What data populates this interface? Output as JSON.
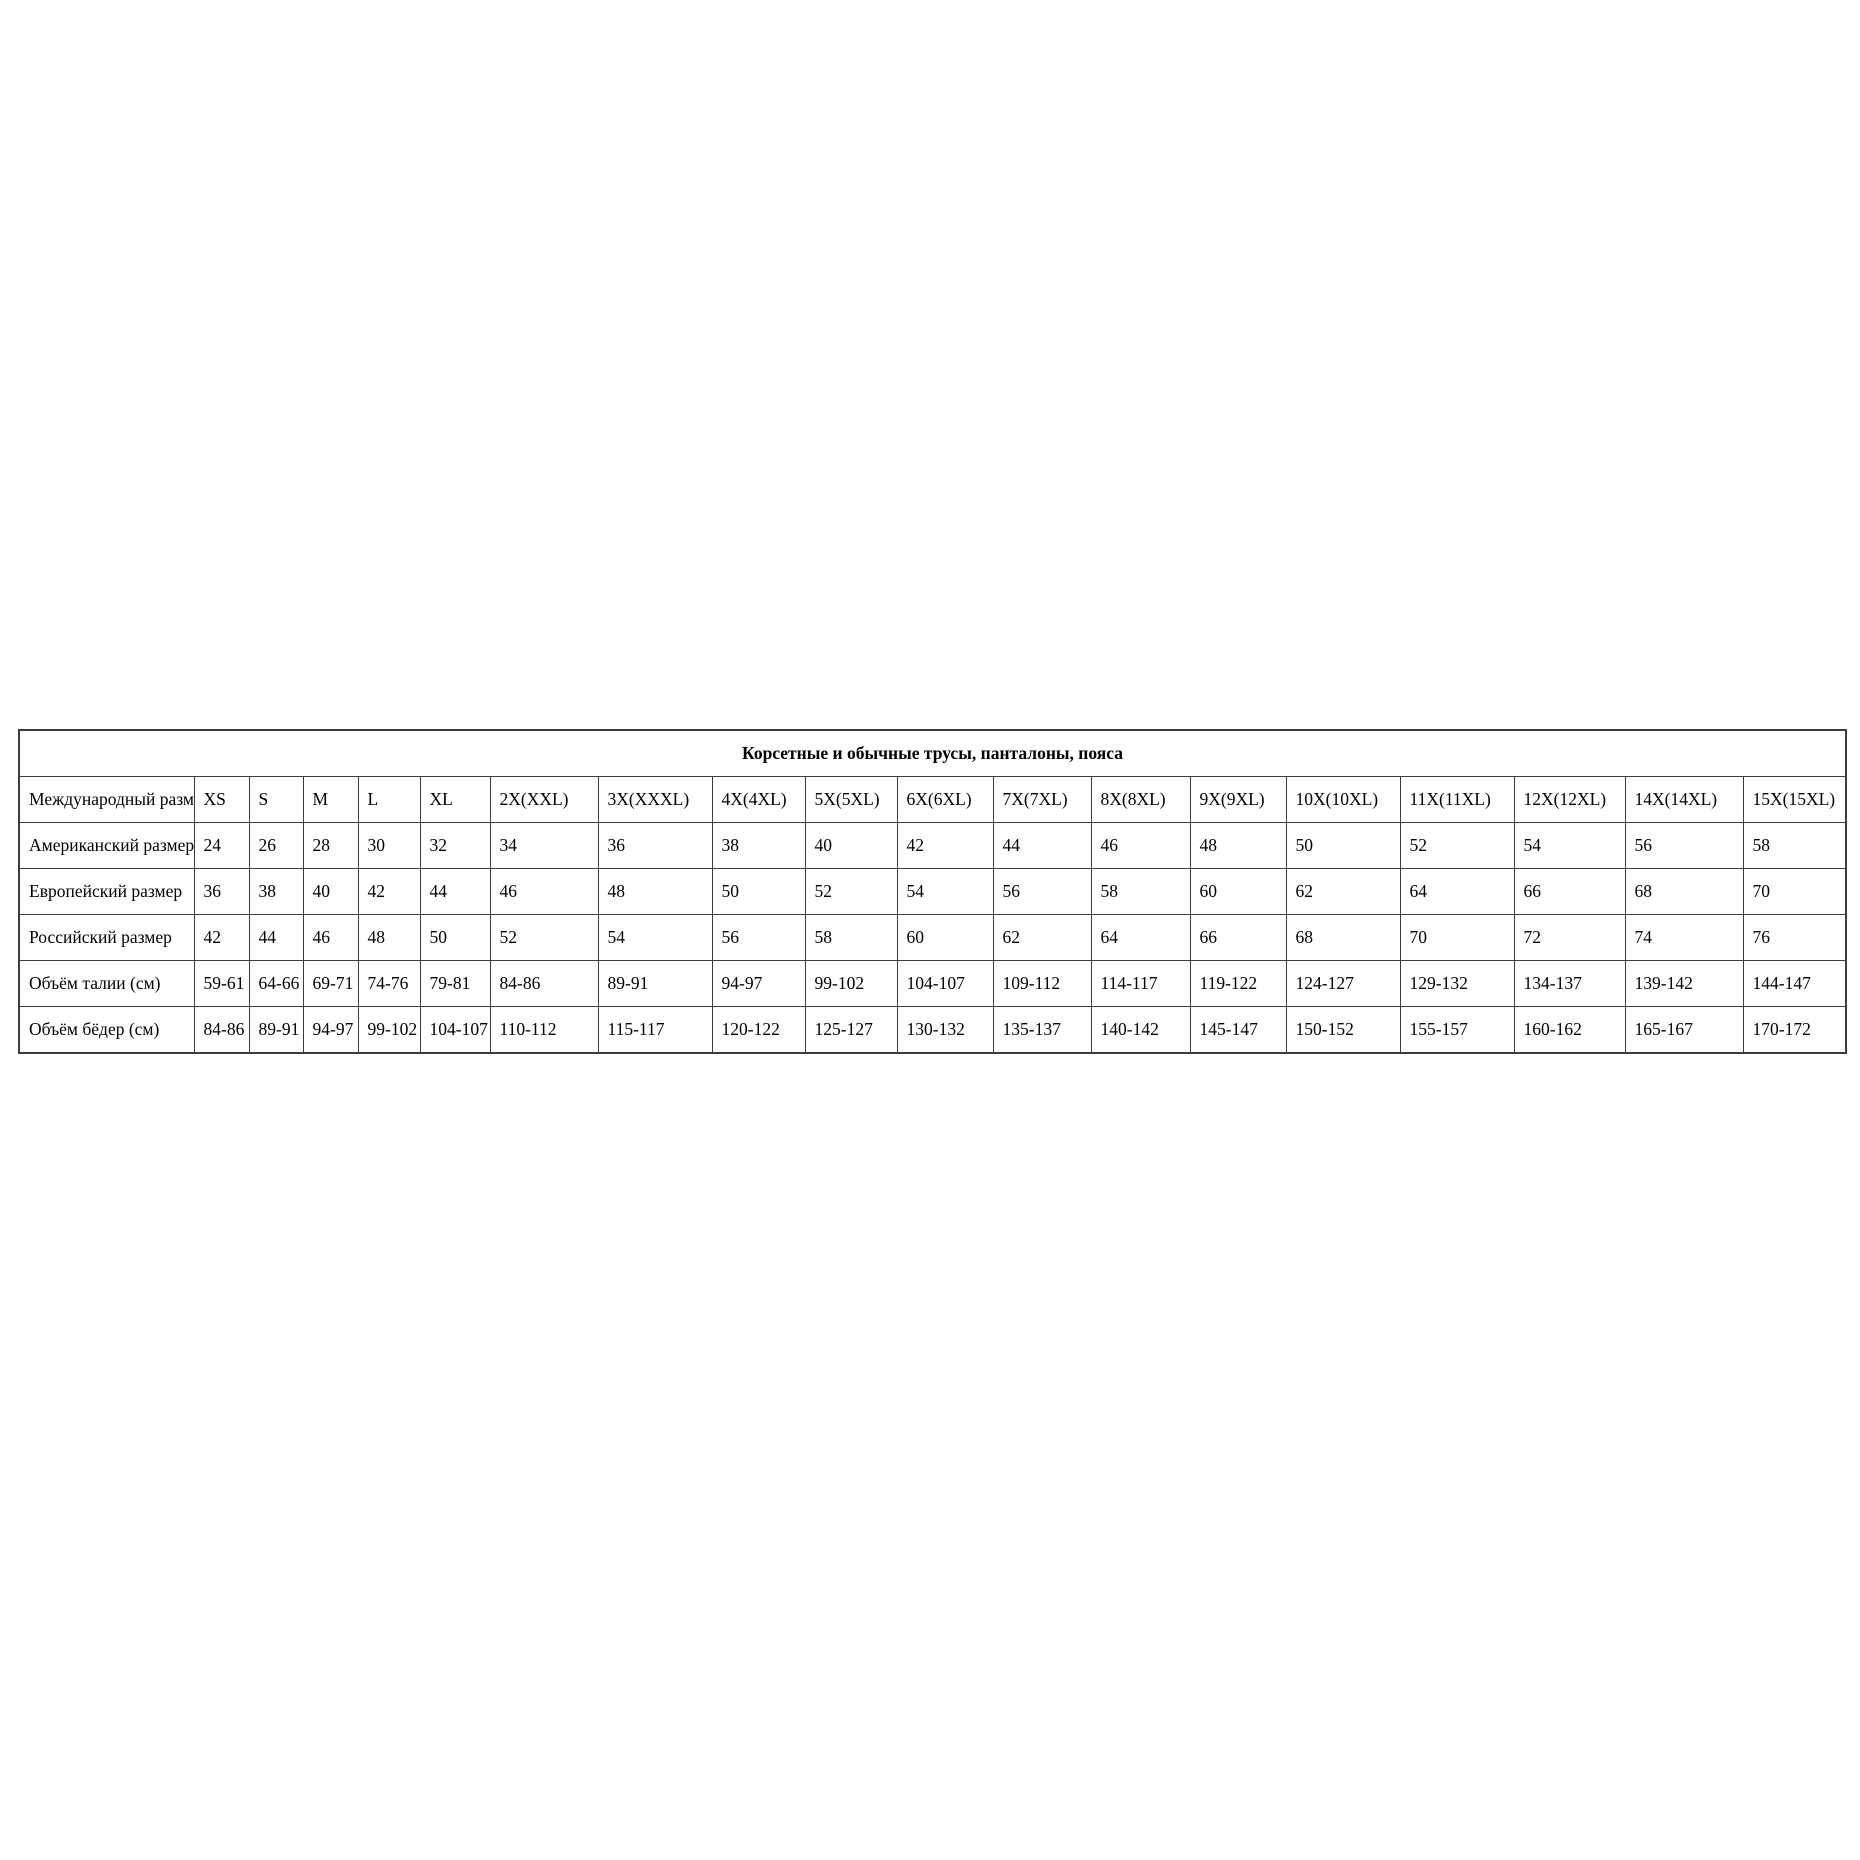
{
  "table": {
    "title": "Корсетные и обычные трусы, панталоны, пояса",
    "border_color": "#3c3c3c",
    "background_color": "#ffffff",
    "text_color": "#000000",
    "rows": [
      {
        "label": "Международный размер",
        "values": [
          "XS",
          "S",
          "M",
          "L",
          "XL",
          "2X(XXL)",
          "3X(XXXL)",
          "4X(4XL)",
          "5X(5XL)",
          "6X(6XL)",
          "7X(7XL)",
          "8X(8XL)",
          "9X(9XL)",
          "10X(10XL)",
          "11X(11XL)",
          "12X(12XL)",
          "14X(14XL)",
          "15X(15XL)"
        ]
      },
      {
        "label": "Американский размер",
        "values": [
          "24",
          "26",
          "28",
          "30",
          "32",
          "34",
          "36",
          "38",
          "40",
          "42",
          "44",
          "46",
          "48",
          "50",
          "52",
          "54",
          "56",
          "58"
        ]
      },
      {
        "label": "Европейский размер",
        "values": [
          "36",
          "38",
          "40",
          "42",
          "44",
          "46",
          "48",
          "50",
          "52",
          "54",
          "56",
          "58",
          "60",
          "62",
          "64",
          "66",
          "68",
          "70"
        ]
      },
      {
        "label": "Российский размер",
        "values": [
          "42",
          "44",
          "46",
          "48",
          "50",
          "52",
          "54",
          "56",
          "58",
          "60",
          "62",
          "64",
          "66",
          "68",
          "70",
          "72",
          "74",
          "76"
        ]
      },
      {
        "label": "Объём талии (см)",
        "values": [
          "59-61",
          "64-66",
          "69-71",
          "74-76",
          "79-81",
          "84-86",
          "89-91",
          "94-97",
          "99-102",
          "104-107",
          "109-112",
          "114-117",
          "119-122",
          "124-127",
          "129-132",
          "134-137",
          "139-142",
          "144-147"
        ]
      },
      {
        "label": "Объём бёдер (см)",
        "values": [
          "84-86",
          "89-91",
          "94-97",
          "99-102",
          "104-107",
          "110-112",
          "115-117",
          "120-122",
          "125-127",
          "130-132",
          "135-137",
          "140-142",
          "145-147",
          "150-152",
          "155-157",
          "160-162",
          "165-167",
          "170-172"
        ]
      }
    ]
  }
}
